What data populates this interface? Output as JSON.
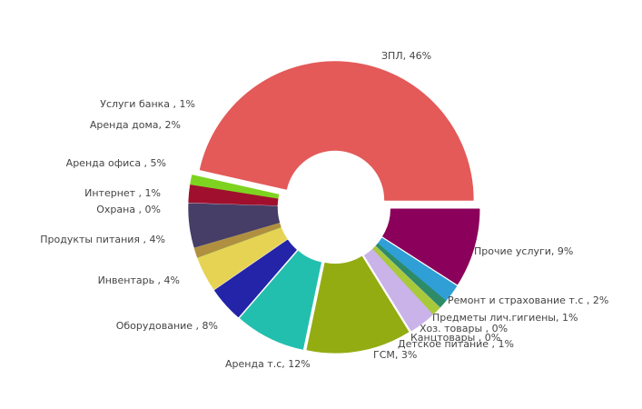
{
  "chart_data": {
    "type": "pie",
    "values": [
      46,
      9,
      2,
      1,
      0,
      0,
      1,
      3,
      12,
      8,
      4,
      4,
      0,
      1,
      5,
      2,
      1
    ],
    "value_labels": [
      "ЗПЛ, 46%",
      "Прочие услуги, 9%",
      "Ремонт и страхование т.с , 2%",
      "Предметы лич.гигиены, 1%",
      "Хоз. товары , 0%",
      "Канцтовары , 0%",
      "Детское питание , 1%",
      "ГСМ, 3%",
      "Аренда т.с, 12%",
      "Оборудование , 8%",
      "Инвентарь , 4%",
      "Продукты питания , 4%",
      "Охрана , 0%",
      "Интернет , 1%",
      "Аренда офиса , 5%",
      "Аренда дома, 2%",
      "Услуги банка , 1%"
    ],
    "colors": [
      "#e35a58",
      "#8b005a",
      "#2f9fd6",
      "#2e8b68",
      "#f2c4bc",
      "#c3cbe8",
      "#a8c93a",
      "#c9b3e8",
      "#93ac12",
      "#22bfae",
      "#2424a8",
      "#e6d354",
      "#6a9a6a",
      "#b09040",
      "#463e66",
      "#a0102e",
      "#7ed321"
    ]
  }
}
